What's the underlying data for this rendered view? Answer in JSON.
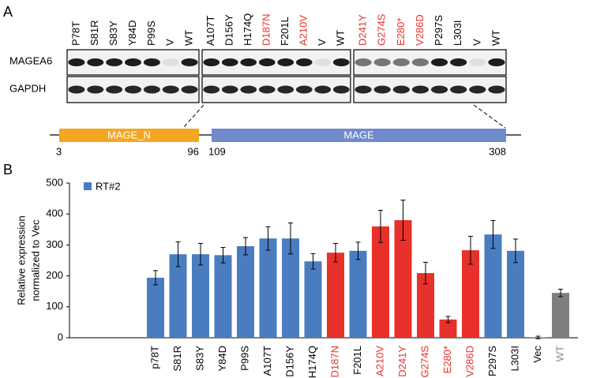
{
  "panel_labels": [
    "A",
    "B"
  ],
  "blot": {
    "row_labels": [
      "MAGEA6",
      "GAPDH"
    ],
    "groups": [
      [
        {
          "label": "P78T",
          "color": "#000000"
        },
        {
          "label": "S81R",
          "color": "#000000"
        },
        {
          "label": "S83Y",
          "color": "#000000"
        },
        {
          "label": "Y84D",
          "color": "#000000"
        },
        {
          "label": "P99S",
          "color": "#000000"
        },
        {
          "label": "V",
          "color": "#000000"
        },
        {
          "label": "WT",
          "color": "#000000"
        }
      ],
      [
        {
          "label": "A107T",
          "color": "#000000"
        },
        {
          "label": "D156Y",
          "color": "#000000"
        },
        {
          "label": "H174Q",
          "color": "#000000"
        },
        {
          "label": "D187N",
          "color": "#e8312a"
        },
        {
          "label": "F201L",
          "color": "#000000"
        },
        {
          "label": "A210V",
          "color": "#e8312a"
        },
        {
          "label": "V",
          "color": "#000000"
        },
        {
          "label": "WT",
          "color": "#000000"
        }
      ],
      [
        {
          "label": "D241Y",
          "color": "#e8312a"
        },
        {
          "label": "G274S",
          "color": "#e8312a"
        },
        {
          "label": "E280*",
          "color": "#e8312a"
        },
        {
          "label": "V286D",
          "color": "#e8312a"
        },
        {
          "label": "P297S",
          "color": "#000000"
        },
        {
          "label": "L303I",
          "color": "#000000"
        },
        {
          "label": "V",
          "color": "#000000"
        },
        {
          "label": "WT",
          "color": "#000000"
        }
      ]
    ]
  },
  "domains": [
    {
      "name": "MAGE_N",
      "start": 3,
      "end": 96,
      "color": "#f5a623"
    },
    {
      "name": "MAGE",
      "start": 109,
      "end": 308,
      "color": "#6f8bcb"
    }
  ],
  "chart_data": {
    "type": "bar",
    "ylabel": [
      "Relative expression",
      "normalized to Vec"
    ],
    "categories": [
      "p78T",
      "S81R",
      "S83Y",
      "Y84D",
      "P99S",
      "A107T",
      "D156Y",
      "H174Q",
      "D187N",
      "F201L",
      "A210V",
      "D241Y",
      "G274S",
      "E280*",
      "V286D",
      "P297S",
      "L303I",
      "Vec",
      "WT"
    ],
    "category_colors": [
      "#000000",
      "#000000",
      "#000000",
      "#000000",
      "#000000",
      "#000000",
      "#000000",
      "#000000",
      "#e8312a",
      "#000000",
      "#e8312a",
      "#e8312a",
      "#e8312a",
      "#e8312a",
      "#e8312a",
      "#000000",
      "#000000",
      "#000000",
      "#8c8c8c"
    ],
    "series": [
      {
        "name": "RT#2",
        "color": "#4a7dc0",
        "values": [
          194,
          270,
          270,
          267,
          296,
          321,
          321,
          247,
          275,
          281,
          360,
          380,
          209,
          59,
          283,
          334,
          281,
          1,
          145
        ],
        "errors": [
          23,
          40,
          35,
          25,
          28,
          38,
          50,
          25,
          30,
          28,
          52,
          65,
          35,
          10,
          45,
          45,
          38,
          4,
          12
        ],
        "bar_colors": [
          "#4a7dc0",
          "#4a7dc0",
          "#4a7dc0",
          "#4a7dc0",
          "#4a7dc0",
          "#4a7dc0",
          "#4a7dc0",
          "#4a7dc0",
          "#e8312a",
          "#4a7dc0",
          "#e8312a",
          "#e8312a",
          "#e8312a",
          "#e8312a",
          "#e8312a",
          "#4a7dc0",
          "#4a7dc0",
          "#4a7dc0",
          "#7f7f7f"
        ]
      }
    ],
    "ylim": [
      0,
      500
    ],
    "yticks": [
      0,
      100,
      200,
      300,
      400,
      500
    ],
    "legend": "upper left"
  }
}
